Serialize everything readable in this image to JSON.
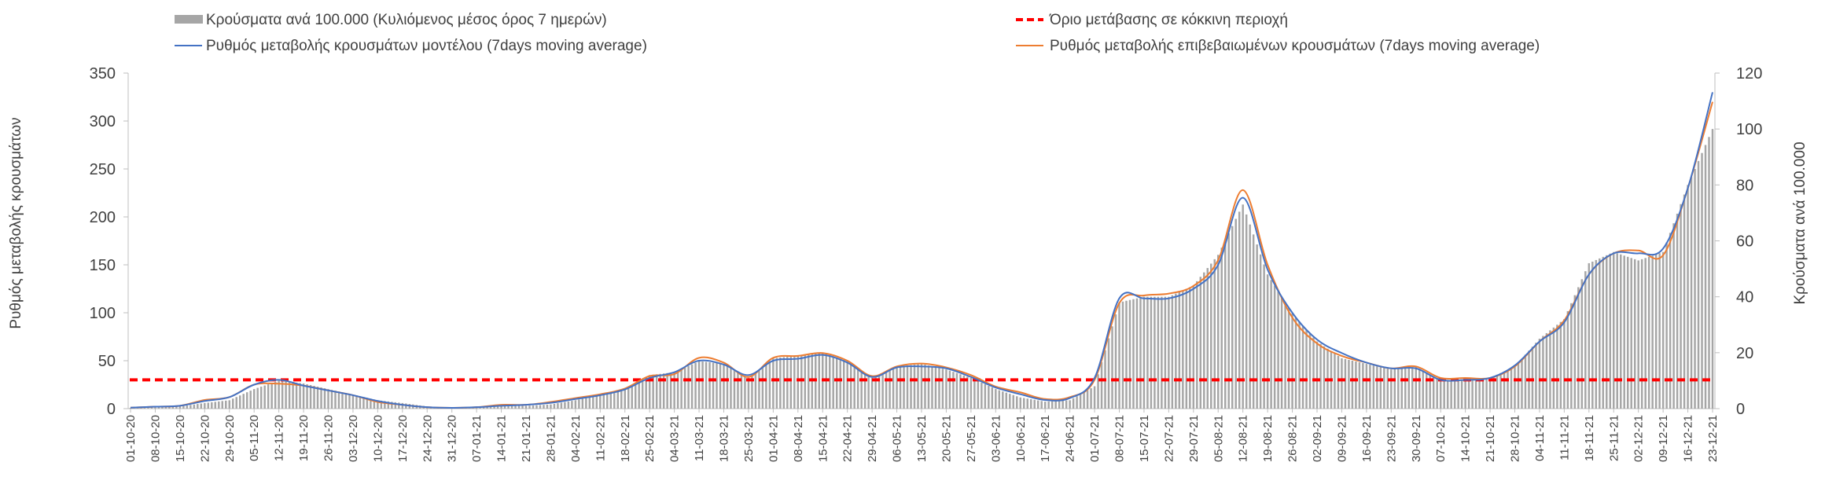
{
  "chart_data": {
    "type": "bar",
    "legend": {
      "bars": "Κρούσματα ανά 100.000 (Κυλιόμενος μέσος όρος 7 ημερών)",
      "threshold": "Όριο μετάβασης σε κόκκινη περιοχή",
      "model": "Ρυθμός μεταβολής κρουσμάτων μοντέλου (7days moving average)",
      "confirmed": "Ρυθμός μεταβολής επιβεβαιωμένων κρουσμάτων (7days moving average)"
    },
    "ylabel_left": "Ρυθμός μεταβολής κρουσμάτων",
    "ylabel_right": "Κρούσματα ανά 100.000",
    "y_left": {
      "range": [
        0,
        350
      ],
      "ticks": [
        0,
        50,
        100,
        150,
        200,
        250,
        300,
        350
      ]
    },
    "y_right": {
      "range": [
        0,
        120
      ],
      "ticks": [
        0,
        20,
        40,
        60,
        80,
        100,
        120
      ]
    },
    "threshold_value": 30,
    "colors": {
      "bars": "#a6a6a6",
      "model": "#4472c4",
      "confirmed": "#ed7d31",
      "threshold": "#ff0000",
      "axis": "#bfbfbf",
      "text": "#404040"
    },
    "x_categories": [
      "01-10-20",
      "08-10-20",
      "15-10-20",
      "22-10-20",
      "29-10-20",
      "05-11-20",
      "12-11-20",
      "19-11-20",
      "26-11-20",
      "03-12-20",
      "10-12-20",
      "17-12-20",
      "24-12-20",
      "31-12-20",
      "07-01-21",
      "14-01-21",
      "21-01-21",
      "28-01-21",
      "04-02-21",
      "11-02-21",
      "18-02-21",
      "25-02-21",
      "04-03-21",
      "11-03-21",
      "18-03-21",
      "25-03-21",
      "01-04-21",
      "08-04-21",
      "15-04-21",
      "22-04-21",
      "29-04-21",
      "06-05-21",
      "13-05-21",
      "20-05-21",
      "27-05-21",
      "03-06-21",
      "10-06-21",
      "17-06-21",
      "24-06-21",
      "01-07-21",
      "08-07-21",
      "15-07-21",
      "22-07-21",
      "29-07-21",
      "05-08-21",
      "12-08-21",
      "19-08-21",
      "26-08-21",
      "02-09-21",
      "09-09-21",
      "16-09-21",
      "23-09-21",
      "30-09-21",
      "07-10-21",
      "14-10-21",
      "21-10-21",
      "28-10-21",
      "04-11-21",
      "11-11-21",
      "18-11-21",
      "25-11-21",
      "02-12-21",
      "09-12-21",
      "16-12-21",
      "23-12-21"
    ],
    "weekly_cases_per_100k": [
      0.3,
      0.6,
      0.8,
      2,
      3,
      7,
      10,
      9,
      7,
      5,
      3,
      2,
      0.8,
      0.3,
      0.5,
      1.5,
      1,
      1.5,
      3,
      5,
      7,
      12,
      13,
      17,
      16,
      11,
      18,
      19,
      20,
      17,
      11,
      15,
      16,
      14,
      11,
      7,
      4,
      2.5,
      3,
      8,
      38,
      40,
      40,
      44,
      55,
      73,
      48,
      34,
      24,
      18,
      16,
      14,
      15,
      10,
      10,
      11,
      15,
      25,
      32,
      52,
      56,
      53,
      56,
      80,
      100
    ],
    "series_model": [
      1,
      2,
      3,
      8,
      12,
      25,
      30,
      24,
      19,
      14,
      8,
      4,
      1.5,
      0.8,
      1.5,
      3,
      4,
      6,
      10,
      14,
      20,
      32,
      38,
      50,
      46,
      35,
      50,
      52,
      56,
      48,
      33,
      43,
      44,
      42,
      33,
      22,
      15,
      9,
      11,
      32,
      115,
      115,
      115,
      125,
      150,
      220,
      145,
      100,
      72,
      58,
      48,
      42,
      42,
      30,
      30,
      32,
      45,
      70,
      90,
      140,
      162,
      162,
      167,
      230,
      330
    ],
    "series_confirmed": [
      1,
      2,
      3,
      9,
      12,
      25,
      26,
      24,
      19,
      14,
      7,
      4,
      1.5,
      0.8,
      1.5,
      4,
      4,
      7,
      11,
      15,
      21,
      34,
      36,
      53,
      48,
      33,
      53,
      55,
      58,
      50,
      34,
      44,
      47,
      43,
      35,
      23,
      17,
      10,
      12,
      30,
      110,
      118,
      120,
      128,
      155,
      228,
      150,
      95,
      68,
      55,
      48,
      42,
      44,
      32,
      32,
      32,
      44,
      70,
      92,
      140,
      162,
      165,
      160,
      230,
      320
    ]
  }
}
